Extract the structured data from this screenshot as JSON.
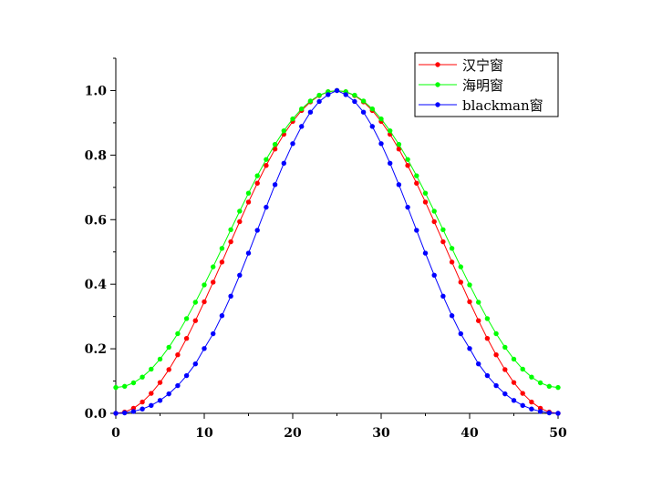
{
  "chart_data": {
    "type": "line",
    "xlim": [
      0,
      50
    ],
    "ylim": [
      0.0,
      1.1
    ],
    "xticks": [
      0,
      10,
      20,
      30,
      40,
      50
    ],
    "yticks": [
      0.0,
      0.2,
      0.4,
      0.6,
      0.8,
      1.0
    ],
    "xtick_labels": [
      "0",
      "10",
      "20",
      "30",
      "40",
      "50"
    ],
    "ytick_labels": [
      "0.0",
      "0.2",
      "0.4",
      "0.6",
      "0.8",
      "1.0"
    ],
    "grid": false,
    "legend_position": "top-right",
    "x": [
      0,
      1,
      2,
      3,
      4,
      5,
      6,
      7,
      8,
      9,
      10,
      11,
      12,
      13,
      14,
      15,
      16,
      17,
      18,
      19,
      20,
      21,
      22,
      23,
      24,
      25,
      26,
      27,
      28,
      29,
      30,
      31,
      32,
      33,
      34,
      35,
      36,
      37,
      38,
      39,
      40,
      41,
      42,
      43,
      44,
      45,
      46,
      47,
      48,
      49,
      50
    ],
    "series": [
      {
        "name": "汉宁窗",
        "color": "#ff0000",
        "values": [
          0.0,
          0.0039,
          0.0157,
          0.0351,
          0.0618,
          0.0955,
          0.1355,
          0.1813,
          0.2321,
          0.2871,
          0.3455,
          0.4063,
          0.4686,
          0.5314,
          0.5937,
          0.6545,
          0.7129,
          0.7679,
          0.8187,
          0.8645,
          0.9045,
          0.9382,
          0.9649,
          0.9843,
          0.9961,
          1.0,
          0.9961,
          0.9843,
          0.9649,
          0.9382,
          0.9045,
          0.8645,
          0.8187,
          0.7679,
          0.7129,
          0.6545,
          0.5937,
          0.5314,
          0.4686,
          0.4063,
          0.3455,
          0.2871,
          0.2321,
          0.1813,
          0.1355,
          0.0955,
          0.0618,
          0.0351,
          0.0157,
          0.0039,
          0.0
        ]
      },
      {
        "name": "海明窗",
        "color": "#00ff00",
        "values": [
          0.08,
          0.0836,
          0.0945,
          0.1123,
          0.1369,
          0.1679,
          0.2047,
          0.2468,
          0.2935,
          0.3441,
          0.3979,
          0.4538,
          0.5111,
          0.5689,
          0.6262,
          0.6821,
          0.7359,
          0.7865,
          0.8332,
          0.8753,
          0.9121,
          0.9431,
          0.9677,
          0.9855,
          0.9964,
          1.0,
          0.9964,
          0.9855,
          0.9677,
          0.9431,
          0.9121,
          0.8753,
          0.8332,
          0.7865,
          0.7359,
          0.6821,
          0.6262,
          0.5689,
          0.5111,
          0.4538,
          0.3979,
          0.3441,
          0.2935,
          0.2468,
          0.2047,
          0.1679,
          0.1369,
          0.1123,
          0.0945,
          0.0836,
          0.08
        ]
      },
      {
        "name": "blackman窗",
        "color": "#0000ff",
        "values": [
          0.0,
          0.0014,
          0.0058,
          0.0134,
          0.0245,
          0.0401,
          0.0603,
          0.0859,
          0.1168,
          0.1531,
          0.2008,
          0.2466,
          0.3025,
          0.363,
          0.4278,
          0.4962,
          0.5671,
          0.6385,
          0.7084,
          0.7748,
          0.8355,
          0.8888,
          0.933,
          0.9661,
          0.9874,
          1.0,
          0.9874,
          0.9661,
          0.933,
          0.8888,
          0.8355,
          0.7748,
          0.7084,
          0.6385,
          0.5671,
          0.4962,
          0.4278,
          0.363,
          0.3025,
          0.2466,
          0.2008,
          0.1531,
          0.1168,
          0.0859,
          0.0603,
          0.0401,
          0.0245,
          0.0134,
          0.0058,
          0.0014,
          0.0
        ]
      }
    ]
  }
}
